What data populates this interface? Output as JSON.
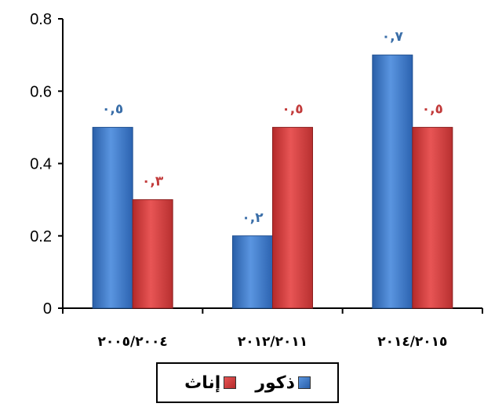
{
  "chart_data": {
    "type": "bar",
    "categories": [
      "٢٠٠٥/٢٠٠٤",
      "٢٠١٢/٢٠١١",
      "٢٠١٤/٢٠١٥"
    ],
    "series": [
      {
        "name": "ذكور",
        "values": [
          0.5,
          0.2,
          0.7
        ],
        "labels": [
          "٠,٥",
          "٠,٢",
          "٠,٧"
        ],
        "color": "#3a77c8"
      },
      {
        "name": "إناث",
        "values": [
          0.3,
          0.5,
          0.5
        ],
        "labels": [
          "٠,٣",
          "٠,٥",
          "٠,٥"
        ],
        "color": "#d43b3b"
      }
    ],
    "yticks": [
      "0",
      "0.2",
      "0.4",
      "0.6",
      "0.8"
    ],
    "ylim": [
      0,
      0.8
    ],
    "grid": false,
    "legend_position": "bottom"
  },
  "legend": {
    "males": "ذكور",
    "females": "إناث"
  }
}
